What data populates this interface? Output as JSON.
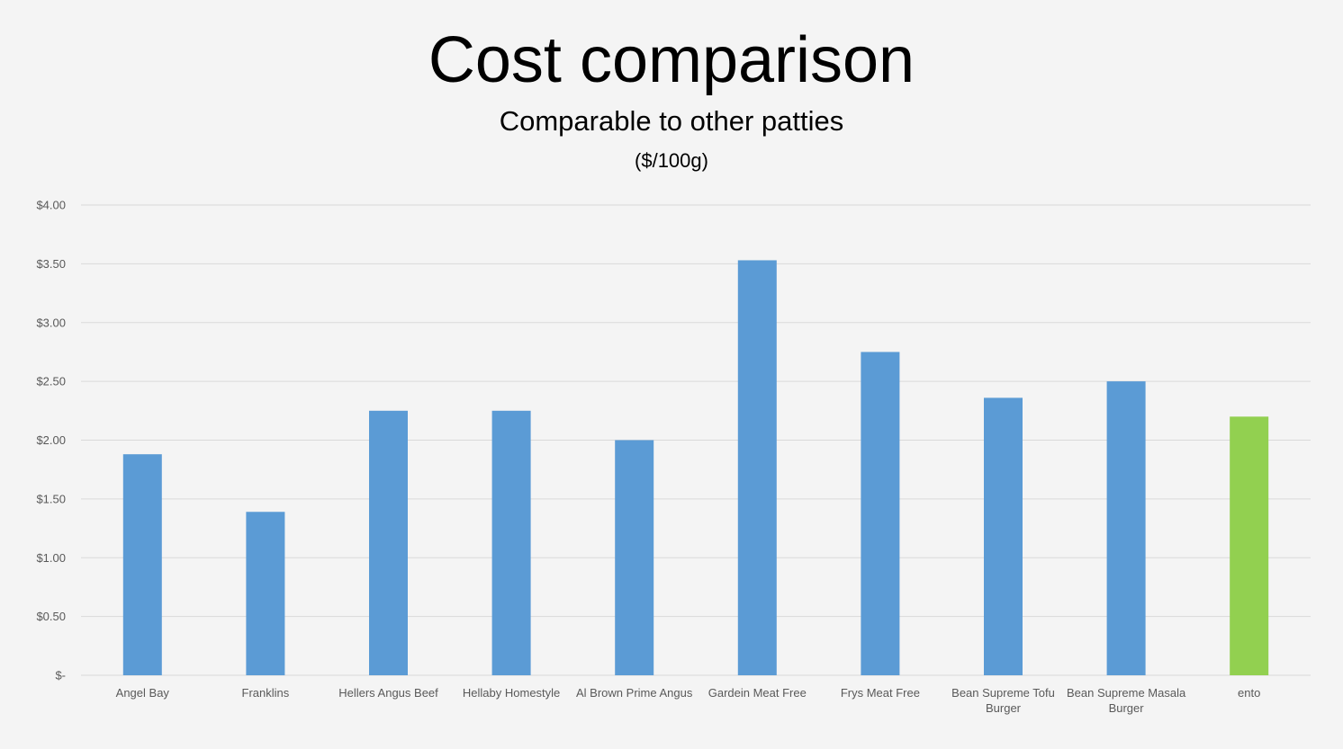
{
  "slide": {
    "title": "Cost comparison",
    "subtitle": "Comparable to other patties",
    "unit": "($/100g)"
  },
  "chart_data": {
    "type": "bar",
    "categories": [
      "Angel Bay",
      "Franklins",
      "Hellers Angus Beef",
      "Hellaby Homestyle",
      "Al Brown Prime Angus",
      "Gardein Meat Free",
      "Frys Meat Free",
      "Bean Supreme Tofu Burger",
      "Bean Supreme Masala Burger",
      "ento"
    ],
    "category_label_lines": [
      [
        "Angel Bay"
      ],
      [
        "Franklins"
      ],
      [
        "Hellers Angus Beef"
      ],
      [
        "Hellaby Homestyle"
      ],
      [
        "Al Brown Prime Angus"
      ],
      [
        "Gardein Meat Free"
      ],
      [
        "Frys Meat Free"
      ],
      [
        "Bean Supreme Tofu",
        "Burger"
      ],
      [
        "Bean Supreme Masala",
        "Burger"
      ],
      [
        "ento"
      ]
    ],
    "values": [
      1.88,
      1.39,
      2.25,
      2.25,
      2.0,
      3.53,
      2.75,
      2.36,
      2.5,
      2.2
    ],
    "bar_colors": [
      "#5b9bd5",
      "#5b9bd5",
      "#5b9bd5",
      "#5b9bd5",
      "#5b9bd5",
      "#5b9bd5",
      "#5b9bd5",
      "#5b9bd5",
      "#5b9bd5",
      "#92d050"
    ],
    "ylim": [
      0,
      4
    ],
    "yticks": [
      0,
      0.5,
      1.0,
      1.5,
      2.0,
      2.5,
      3.0,
      3.5,
      4.0
    ],
    "ytick_labels": [
      "$-",
      "$0.50",
      "$1.00",
      "$1.50",
      "$2.00",
      "$2.50",
      "$3.00",
      "$3.50",
      "$4.00"
    ],
    "grid": true,
    "legend": "none",
    "colors": {
      "grid": "#d9d9d9",
      "axis": "#d9d9d9",
      "tick_text": "#595959"
    }
  }
}
